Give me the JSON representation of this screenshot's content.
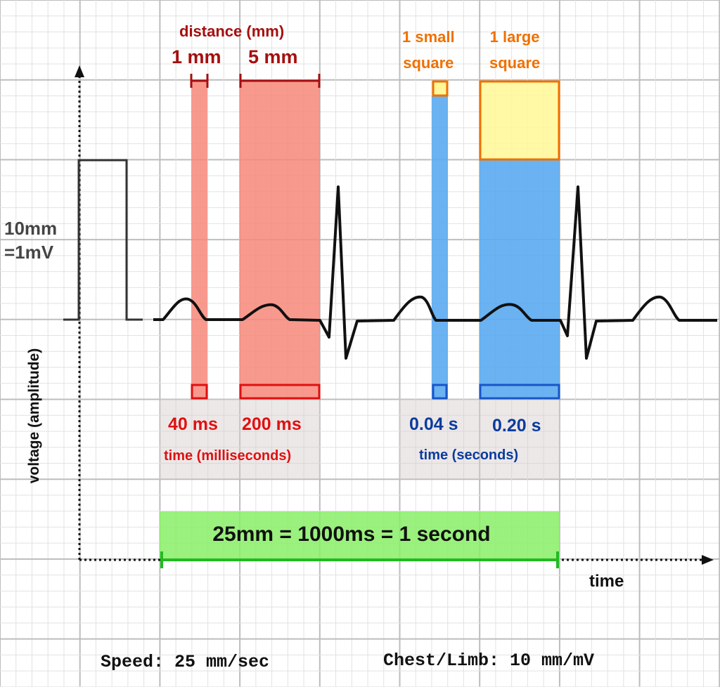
{
  "labels": {
    "distance_title": "distance (mm)",
    "one_mm": "1 mm",
    "five_mm": "5 mm",
    "small_square": "1 small square",
    "small_square_l1": "1 small",
    "small_square_l2": "square",
    "large_square_l1": "1 large",
    "large_square_l2": "square",
    "calibration_l1": "10mm",
    "calibration_l2": "=1mV",
    "y_axis": "voltage (amplitude)",
    "ms40": "40 ms",
    "ms200": "200 ms",
    "time_ms": "time (milliseconds)",
    "s004": "0.04 s",
    "s020": "0.20 s",
    "time_s": "time (seconds)",
    "equation": "25mm = 1000ms = 1 second",
    "x_axis": "time",
    "speed": "Speed: 25 mm/sec",
    "gain": "Chest/Limb: 10 mm/mV"
  },
  "colors": {
    "grid_minor": "#e2e2e2",
    "grid_major": "#bdbdbd",
    "red_fill": "#f7877a",
    "red_text": "#a50f0f",
    "red_bright": "#e01010",
    "blue_fill": "#5aaaf0",
    "blue_text": "#0a3c9c",
    "orange": "#f07000",
    "yellow": "#fff79a",
    "green_fill": "#88ee66",
    "green_line": "#22bb22",
    "trace": "#111111"
  }
}
